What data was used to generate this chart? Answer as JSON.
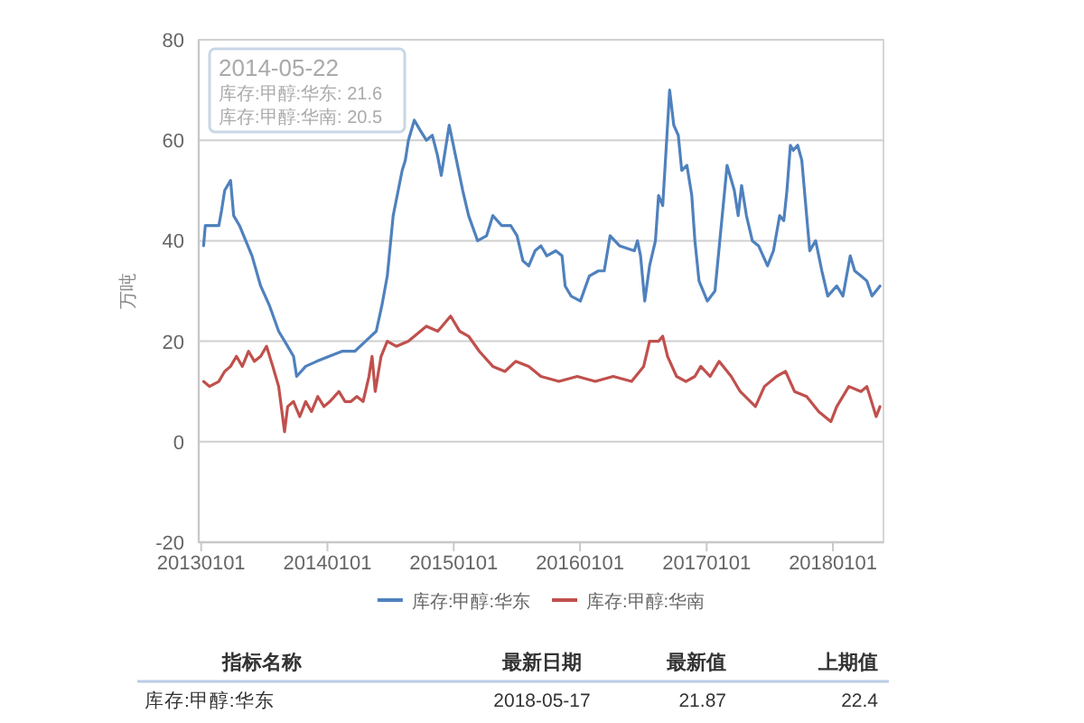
{
  "chart_data": {
    "type": "line",
    "ylabel": "万吨",
    "annotations": [
      "2014-05-22",
      "库存:甲醇:华东: 21.6",
      "库存:甲醇:华南: 20.5",
      "指标名称",
      "最新日期",
      "最新值",
      "上期值",
      "库存:甲醇:华东",
      "2018-05-17",
      "21.87",
      "22.4"
    ],
    "series": [
      {
        "name": "库存:甲醇:华东",
        "color": "#4f81bd",
        "x": [
          "2013-01-08",
          "2013-01-13",
          "2013-02-03",
          "2013-02-21",
          "2013-03-01",
          "2013-03-10",
          "2013-03-27",
          "2013-04-05",
          "2013-04-22",
          "2013-05-28",
          "2013-06-22",
          "2013-07-18",
          "2013-08-13",
          "2013-09-08",
          "2013-09-25",
          "2013-10-04",
          "2013-10-30",
          "2013-12-01",
          "2014-01-06",
          "2014-02-12",
          "2014-03-21",
          "2014-04-21",
          "2014-05-22",
          "2014-06-07",
          "2014-06-23",
          "2014-07-10",
          "2014-08-05",
          "2014-08-14",
          "2014-08-23",
          "2014-09-09",
          "2014-09-26",
          "2014-10-14",
          "2014-10-31",
          "2014-11-15",
          "2014-11-26",
          "2014-12-19",
          "2015-01-06",
          "2015-01-27",
          "2015-02-13",
          "2015-03-11",
          "2015-04-06",
          "2015-04-24",
          "2015-05-20",
          "2015-06-15",
          "2015-07-03",
          "2015-07-20",
          "2015-08-06",
          "2015-08-24",
          "2015-09-10",
          "2015-09-27",
          "2015-10-23",
          "2015-11-10",
          "2015-11-19",
          "2015-12-06",
          "2016-01-02",
          "2016-01-28",
          "2016-02-23",
          "2016-03-11",
          "2016-03-28",
          "2016-04-24",
          "2016-06-06",
          "2016-06-15",
          "2016-06-24",
          "2016-07-06",
          "2016-07-20",
          "2016-08-06",
          "2016-08-15",
          "2016-08-27",
          "2016-09-10",
          "2016-09-16",
          "2016-09-28",
          "2016-10-11",
          "2016-10-21",
          "2016-11-05",
          "2016-11-19",
          "2016-11-28",
          "2016-12-10",
          "2017-01-03",
          "2017-01-25",
          "2017-02-15",
          "2017-03-01",
          "2017-03-22",
          "2017-04-02",
          "2017-04-12",
          "2017-04-26",
          "2017-05-13",
          "2017-05-31",
          "2017-06-26",
          "2017-07-13",
          "2017-07-31",
          "2017-08-12",
          "2017-08-21",
          "2017-08-31",
          "2017-09-08",
          "2017-09-21",
          "2017-10-03",
          "2017-10-17",
          "2017-10-26",
          "2017-11-12",
          "2017-11-30",
          "2017-12-17",
          "2018-01-12",
          "2018-01-30",
          "2018-02-20",
          "2018-03-05",
          "2018-03-23",
          "2018-04-09",
          "2018-04-24",
          "2018-05-17"
        ],
        "values": [
          39,
          43,
          43,
          43,
          46,
          50,
          52,
          45,
          43,
          37,
          31,
          27,
          22,
          19,
          17,
          13,
          15,
          16,
          17,
          18,
          18,
          20,
          22,
          27,
          33,
          45,
          54,
          56,
          60,
          64,
          62,
          60,
          61,
          57,
          53,
          63,
          57,
          50,
          45,
          40,
          41,
          45,
          43,
          43,
          41,
          36,
          35,
          38,
          39,
          37,
          38,
          37,
          31,
          29,
          28,
          33,
          34,
          34,
          41,
          39,
          38,
          40,
          37,
          28,
          35,
          40,
          49,
          47,
          63,
          70,
          63,
          61,
          54,
          55,
          49,
          40,
          32,
          28,
          30,
          45,
          55,
          50,
          45,
          51,
          45,
          40,
          39,
          35,
          38,
          45,
          44,
          50,
          59,
          58,
          59,
          56,
          45,
          38,
          40,
          34,
          29,
          31,
          29,
          37,
          34,
          33,
          32,
          29,
          31
        ]
      },
      {
        "name": "库存:甲醇:华南",
        "color": "#c0504d",
        "x": [
          "2013-01-08",
          "2013-01-25",
          "2013-02-21",
          "2013-03-10",
          "2013-03-27",
          "2013-04-13",
          "2013-04-30",
          "2013-05-18",
          "2013-06-04",
          "2013-06-22",
          "2013-07-09",
          "2013-07-27",
          "2013-08-13",
          "2013-08-30",
          "2013-09-08",
          "2013-09-25",
          "2013-10-13",
          "2013-10-30",
          "2013-11-16",
          "2013-12-04",
          "2013-12-22",
          "2014-01-08",
          "2014-02-03",
          "2014-02-21",
          "2014-03-10",
          "2014-03-27",
          "2014-04-14",
          "2014-05-01",
          "2014-05-10",
          "2014-05-19",
          "2014-06-05",
          "2014-06-23",
          "2014-07-19",
          "2014-08-23",
          "2014-10-14",
          "2014-11-16",
          "2014-12-23",
          "2015-01-18",
          "2015-02-13",
          "2015-03-16",
          "2015-04-24",
          "2015-05-29",
          "2015-06-29",
          "2015-08-06",
          "2015-09-10",
          "2015-11-01",
          "2015-12-24",
          "2016-02-14",
          "2016-04-06",
          "2016-05-29",
          "2016-07-03",
          "2016-07-20",
          "2016-08-15",
          "2016-08-27",
          "2016-09-10",
          "2016-10-06",
          "2016-11-02",
          "2016-11-28",
          "2016-12-15",
          "2017-01-11",
          "2017-02-06",
          "2017-03-13",
          "2017-04-08",
          "2017-05-22",
          "2017-06-17",
          "2017-07-22",
          "2017-08-17",
          "2017-09-12",
          "2017-10-17",
          "2017-11-21",
          "2017-12-26",
          "2018-01-12",
          "2018-02-16",
          "2018-03-23",
          "2018-04-09",
          "2018-05-06",
          "2018-05-17"
        ],
        "values": [
          12,
          11,
          12,
          14,
          15,
          17,
          15,
          18,
          16,
          17,
          19,
          15,
          11,
          2,
          7,
          8,
          5,
          8,
          6,
          9,
          7,
          8,
          10,
          8,
          8,
          9,
          8,
          13,
          17,
          10,
          17,
          20,
          19,
          20,
          23,
          22,
          25,
          22,
          21,
          18,
          15,
          14,
          16,
          15,
          13,
          12,
          13,
          12,
          13,
          12,
          15,
          20,
          20,
          21,
          17,
          13,
          12,
          13,
          15,
          13,
          16,
          13,
          10,
          7,
          11,
          13,
          14,
          10,
          9,
          6,
          4,
          7,
          11,
          10,
          11,
          5,
          7
        ]
      }
    ],
    "xlim": [
      "2012-12-25",
      "2018-05-27"
    ],
    "xticks": [
      {
        "value": "2013-01-01",
        "label": "20130101"
      },
      {
        "value": "2014-01-01",
        "label": "20140101"
      },
      {
        "value": "2015-01-01",
        "label": "20150101"
      },
      {
        "value": "2016-01-01",
        "label": "20160101"
      },
      {
        "value": "2017-01-01",
        "label": "20170101"
      },
      {
        "value": "2018-01-01",
        "label": "20180101"
      }
    ],
    "ylim": [
      -20,
      80
    ],
    "yticks": [
      -20,
      0,
      20,
      40,
      60,
      80
    ],
    "grid": "y",
    "legend": "bottom",
    "line_style": "solid"
  }
}
